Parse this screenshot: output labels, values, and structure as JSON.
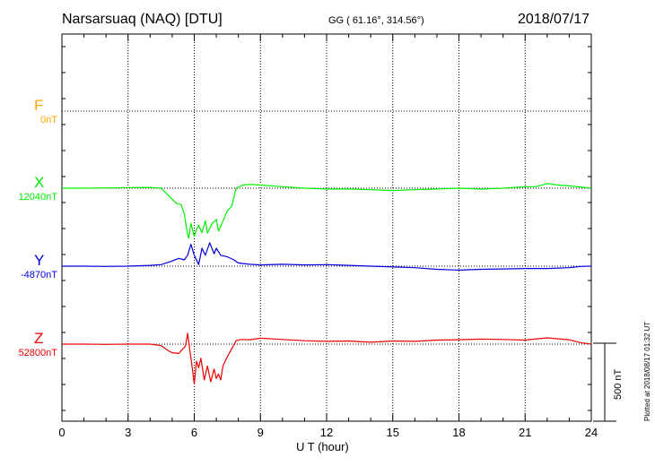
{
  "header": {
    "station": "Narsarsuaq (NAQ)  [DTU]",
    "coords": "GG ( 61.16°, 314.56°)",
    "date": "2018/07/17"
  },
  "plotted_note": "Plotted at 2018/08/17 01:32 UT",
  "scale_label": "500 nT",
  "chart_data": {
    "type": "line",
    "xlabel": "U T (hour)",
    "xlim": [
      0,
      24
    ],
    "x_ticks": [
      "0",
      "3",
      "6",
      "9",
      "12",
      "15",
      "18",
      "21",
      "24"
    ],
    "y_units": "nT",
    "grid": true,
    "series": [
      {
        "name": "F",
        "baseline_label": "0nT",
        "color": "#ffa500",
        "x": [],
        "y": []
      },
      {
        "name": "X",
        "baseline_label": "12040nT",
        "color": "#00ee00",
        "x": [
          0,
          1,
          2,
          3,
          4,
          4.5,
          4.9,
          5.2,
          5.4,
          5.55,
          5.7,
          5.75,
          5.85,
          6.0,
          6.1,
          6.2,
          6.35,
          6.5,
          6.6,
          6.8,
          7.0,
          7.1,
          7.25,
          7.5,
          7.7,
          7.9,
          8.2,
          8.5,
          9,
          10,
          11,
          12,
          13,
          14,
          15,
          16,
          17,
          18,
          19,
          20,
          21,
          21.5,
          22,
          22.5,
          23,
          24
        ],
        "y": [
          12040,
          12040,
          12042,
          12044,
          12045,
          12040,
          11982,
          11942,
          11935,
          11875,
          11740,
          11720,
          11815,
          11730,
          11775,
          11802,
          11755,
          11830,
          11752,
          11812,
          11840,
          11765,
          11812,
          11895,
          11925,
          12040,
          12060,
          12065,
          12060,
          12050,
          12040,
          12035,
          12035,
          12030,
          12025,
          12030,
          12035,
          12040,
          12035,
          12040,
          12050,
          12050,
          12070,
          12060,
          12055,
          12040
        ]
      },
      {
        "name": "Y",
        "baseline_label": "-4870nT",
        "color": "#0000dd",
        "x": [
          0,
          1,
          2,
          3,
          4,
          4.5,
          4.9,
          5.3,
          5.55,
          5.7,
          5.85,
          6.0,
          6.2,
          6.35,
          6.5,
          6.7,
          6.9,
          7.0,
          7.2,
          7.5,
          7.8,
          8.0,
          8.5,
          9,
          10,
          11,
          12,
          13,
          14,
          15,
          16,
          17,
          18,
          19,
          20,
          21,
          22,
          23,
          23.5,
          24
        ],
        "y": [
          -4870,
          -4870,
          -4872,
          -4870,
          -4865,
          -4860,
          -4842,
          -4820,
          -4830,
          -4800,
          -4730,
          -4800,
          -4860,
          -4755,
          -4800,
          -4720,
          -4790,
          -4755,
          -4800,
          -4810,
          -4830,
          -4850,
          -4858,
          -4862,
          -4858,
          -4862,
          -4860,
          -4865,
          -4870,
          -4875,
          -4880,
          -4890,
          -4895,
          -4890,
          -4888,
          -4885,
          -4885,
          -4880,
          -4872,
          -4870
        ]
      },
      {
        "name": "Z",
        "baseline_label": "52800nT",
        "color": "#ee0000",
        "x": [
          0,
          1,
          2,
          3,
          4,
          4.5,
          4.8,
          5.0,
          5.3,
          5.6,
          5.7,
          5.8,
          5.9,
          6.0,
          6.1,
          6.2,
          6.3,
          6.45,
          6.6,
          6.75,
          6.9,
          7.0,
          7.1,
          7.2,
          7.3,
          7.5,
          7.7,
          7.9,
          8.1,
          8.5,
          9,
          10,
          11,
          12,
          13,
          14,
          15,
          16,
          17,
          18,
          19,
          20,
          21,
          22,
          22.5,
          23,
          23.5,
          24
        ],
        "y": [
          52800,
          52800,
          52798,
          52800,
          52800,
          52790,
          52760,
          52745,
          52740,
          52788,
          52870,
          52760,
          52660,
          52545,
          52690,
          52648,
          52710,
          52570,
          52660,
          52558,
          52640,
          52580,
          52608,
          52570,
          52660,
          52720,
          52770,
          52822,
          52830,
          52828,
          52838,
          52830,
          52822,
          52818,
          52820,
          52812,
          52820,
          52818,
          52826,
          52828,
          52832,
          52830,
          52826,
          52840,
          52834,
          52828,
          52810,
          52800
        ]
      }
    ]
  }
}
